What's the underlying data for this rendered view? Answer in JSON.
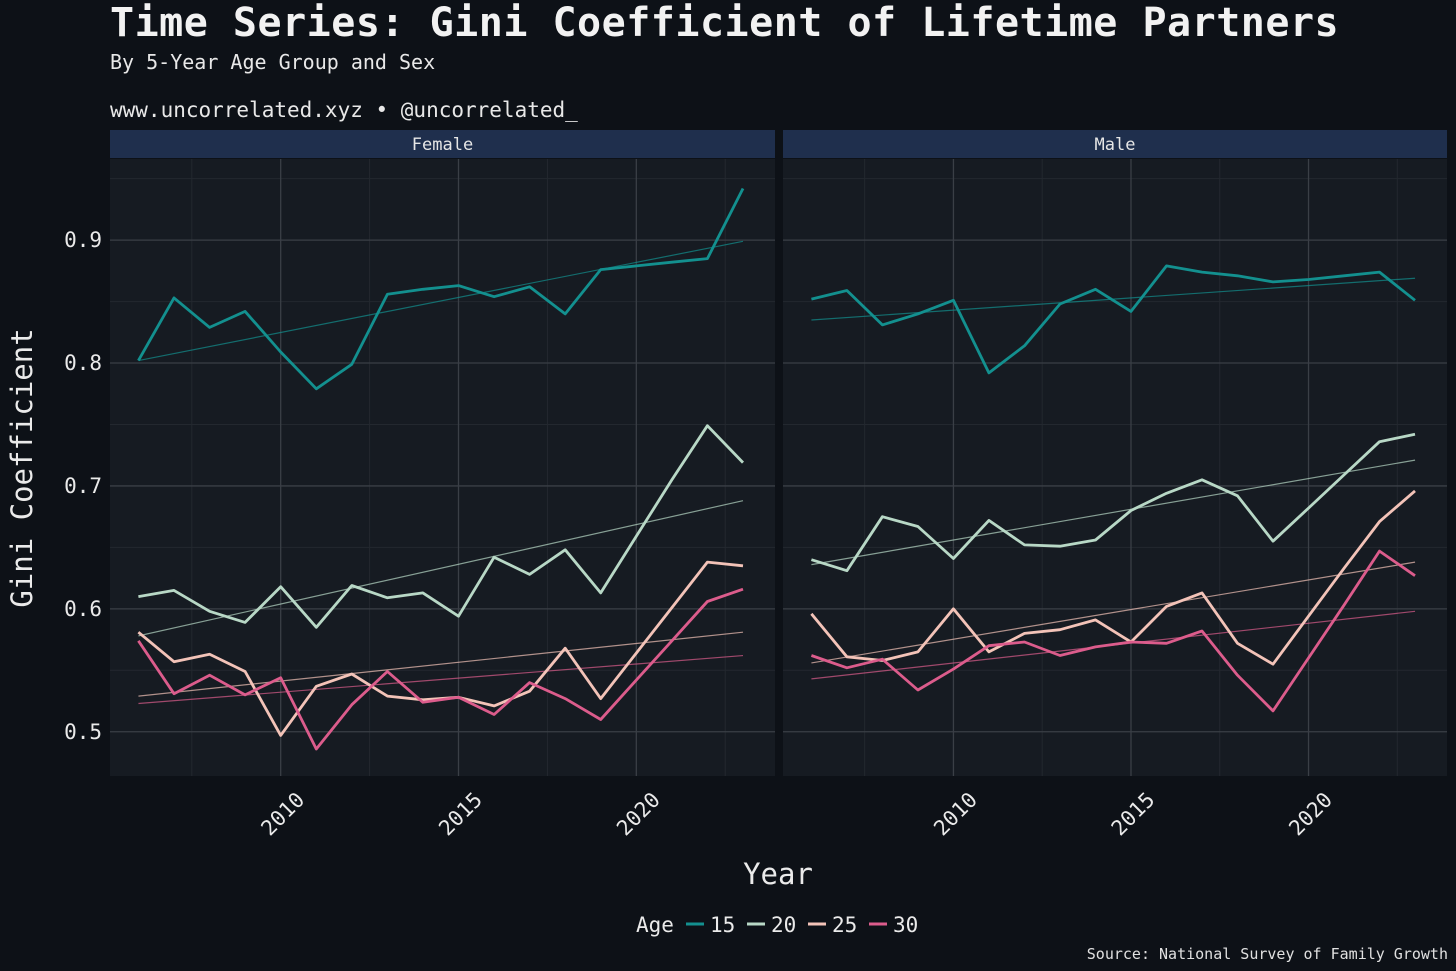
{
  "header": {
    "title": "Time Series: Gini Coefficient of Lifetime Partners",
    "subtitle": "By 5-Year Age Group and Sex",
    "caption": "www.uncorrelated.xyz • @uncorrelated_",
    "source": "Source: National Survey of Family Growth"
  },
  "colors": {
    "background": "#0d1117",
    "panel": "#161b22",
    "strip": "#1f2f4d",
    "grid_major": "#3a3f46",
    "grid_minor": "#23282f",
    "series": {
      "15": "#13908f",
      "20": "#b8d8c6",
      "25": "#f3c3b8",
      "30": "#dc5c8c"
    }
  },
  "chart_data": {
    "type": "line",
    "xlabel": "Year",
    "ylabel": "Gini Coefficient",
    "xlim": [
      2005.2,
      2023.9
    ],
    "ylim": [
      0.464,
      0.966
    ],
    "x_ticks": [
      2010,
      2015,
      2020
    ],
    "y_ticks": [
      0.5,
      0.6,
      0.7,
      0.8,
      0.9
    ],
    "grid": true,
    "legend": {
      "title": "Age",
      "position": "bottom",
      "entries": [
        "15",
        "20",
        "25",
        "30"
      ]
    },
    "trend_lines": true,
    "facets": [
      {
        "label": "Female",
        "series": [
          {
            "name": "15",
            "x": [
              2006,
              2007,
              2008,
              2009,
              2010,
              2011,
              2012,
              2013,
              2014,
              2015,
              2016,
              2017,
              2018,
              2019,
              2020,
              2021,
              2022,
              2023
            ],
            "values": [
              0.802,
              0.853,
              0.829,
              0.842,
              0.809,
              0.779,
              0.799,
              0.856,
              0.86,
              0.863,
              0.854,
              0.862,
              0.84,
              0.876,
              0.879,
              0.882,
              0.885,
              0.942
            ],
            "trend": [
              0.802,
              0.899
            ]
          },
          {
            "name": "20",
            "x": [
              2006,
              2007,
              2008,
              2009,
              2010,
              2011,
              2012,
              2013,
              2014,
              2015,
              2016,
              2017,
              2018,
              2019,
              2020,
              2021,
              2022,
              2023
            ],
            "values": [
              0.61,
              0.615,
              0.598,
              0.589,
              0.618,
              0.585,
              0.619,
              0.609,
              0.613,
              0.594,
              0.642,
              0.628,
              0.648,
              0.613,
              0.659,
              0.705,
              0.749,
              0.719
            ],
            "trend": [
              0.578,
              0.688
            ]
          },
          {
            "name": "25",
            "x": [
              2006,
              2007,
              2008,
              2009,
              2010,
              2011,
              2012,
              2013,
              2014,
              2015,
              2016,
              2017,
              2018,
              2019,
              2020,
              2021,
              2022,
              2023
            ],
            "values": [
              0.581,
              0.557,
              0.563,
              0.549,
              0.497,
              0.537,
              0.547,
              0.529,
              0.526,
              0.528,
              0.521,
              0.533,
              0.568,
              0.527,
              0.564,
              0.601,
              0.638,
              0.635
            ],
            "trend": [
              0.529,
              0.581
            ]
          },
          {
            "name": "30",
            "x": [
              2006,
              2007,
              2008,
              2009,
              2010,
              2011,
              2012,
              2013,
              2014,
              2015,
              2016,
              2017,
              2018,
              2019,
              2020,
              2021,
              2022,
              2023
            ],
            "values": [
              0.574,
              0.531,
              0.546,
              0.53,
              0.544,
              0.486,
              0.522,
              0.549,
              0.524,
              0.528,
              0.514,
              0.54,
              0.527,
              0.51,
              0.542,
              0.574,
              0.606,
              0.616
            ],
            "trend": [
              0.523,
              0.562
            ]
          }
        ]
      },
      {
        "label": "Male",
        "series": [
          {
            "name": "15",
            "x": [
              2006,
              2007,
              2008,
              2009,
              2010,
              2011,
              2012,
              2013,
              2014,
              2015,
              2016,
              2017,
              2018,
              2019,
              2020,
              2021,
              2022,
              2023
            ],
            "values": [
              0.852,
              0.859,
              0.831,
              0.84,
              0.851,
              0.792,
              0.814,
              0.848,
              0.86,
              0.842,
              0.879,
              0.874,
              0.871,
              0.866,
              0.868,
              0.871,
              0.874,
              0.851
            ],
            "trend": [
              0.835,
              0.869
            ]
          },
          {
            "name": "20",
            "x": [
              2006,
              2007,
              2008,
              2009,
              2010,
              2011,
              2012,
              2013,
              2014,
              2015,
              2016,
              2017,
              2018,
              2019,
              2020,
              2021,
              2022,
              2023
            ],
            "values": [
              0.64,
              0.631,
              0.675,
              0.667,
              0.641,
              0.672,
              0.652,
              0.651,
              0.656,
              0.68,
              0.694,
              0.705,
              0.692,
              0.655,
              0.682,
              0.709,
              0.736,
              0.742
            ],
            "trend": [
              0.636,
              0.721
            ]
          },
          {
            "name": "25",
            "x": [
              2006,
              2007,
              2008,
              2009,
              2010,
              2011,
              2012,
              2013,
              2014,
              2015,
              2016,
              2017,
              2018,
              2019,
              2020,
              2021,
              2022,
              2023
            ],
            "values": [
              0.596,
              0.561,
              0.558,
              0.565,
              0.6,
              0.565,
              0.58,
              0.583,
              0.591,
              0.573,
              0.602,
              0.613,
              0.572,
              0.555,
              0.594,
              0.633,
              0.671,
              0.696
            ],
            "trend": [
              0.556,
              0.638
            ]
          },
          {
            "name": "30",
            "x": [
              2006,
              2007,
              2008,
              2009,
              2010,
              2011,
              2012,
              2013,
              2014,
              2015,
              2016,
              2017,
              2018,
              2019,
              2020,
              2021,
              2022,
              2023
            ],
            "values": [
              0.562,
              0.552,
              0.559,
              0.534,
              0.551,
              0.57,
              0.573,
              0.562,
              0.569,
              0.573,
              0.572,
              0.582,
              0.546,
              0.517,
              0.56,
              0.603,
              0.647,
              0.627
            ],
            "trend": [
              0.543,
              0.598
            ]
          }
        ]
      }
    ]
  }
}
